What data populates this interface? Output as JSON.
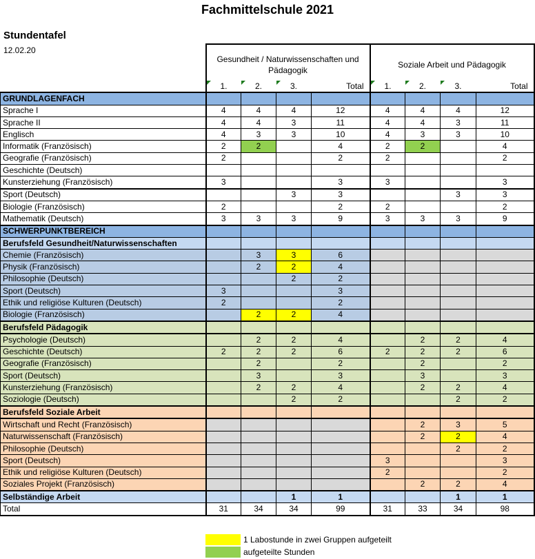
{
  "title": "Fachmittelschule 2021",
  "subtitle": "Stundentafel",
  "date": "12.02.20",
  "colors": {
    "main_header": "#8db4e2",
    "gesundheit_header": "#c5d9f1",
    "gesundheit": "#b8cce4",
    "paedagogik": "#d8e4bc",
    "soziale_arbeit": "#fcd5b4",
    "selbstaendig": "#c5d9f1",
    "unavailable": "#d9d9d9",
    "yellow": "#ffff00",
    "green": "#92d050",
    "white": "#ffffff"
  },
  "groups": [
    {
      "label": "Gesundheit / Naturwissenschaften und Pädagogik",
      "columns": [
        "1.",
        "2.",
        "3.",
        "Total"
      ]
    },
    {
      "label": "Soziale Arbeit und Pädagogik",
      "columns": [
        "1.",
        "2.",
        "3.",
        "Total"
      ]
    }
  ],
  "rows": [
    {
      "label": "GRUNDLAGENFACH",
      "style": "main_header",
      "section": true,
      "cells": [
        "",
        "",
        "",
        "",
        "",
        "",
        "",
        ""
      ]
    },
    {
      "label": "Sprache I",
      "style": "white",
      "cells": [
        "4",
        "4",
        "4",
        "12",
        "4",
        "4",
        "4",
        "12"
      ]
    },
    {
      "label": "Sprache II",
      "style": "white",
      "cells": [
        "4",
        "4",
        "3",
        "11",
        "4",
        "4",
        "3",
        "11"
      ]
    },
    {
      "label": "Englisch",
      "style": "white",
      "cells": [
        "4",
        "3",
        "3",
        "10",
        "4",
        "3",
        "3",
        "10"
      ]
    },
    {
      "label": "Informatik (Französisch)",
      "style": "white",
      "cells": [
        "2",
        "2",
        "",
        "4",
        "2",
        "2",
        "",
        "4"
      ],
      "marks": {
        "1": "green",
        "5": "green"
      }
    },
    {
      "label": "Geografie (Französisch)",
      "style": "white",
      "cells": [
        "2",
        "",
        "",
        "2",
        "2",
        "",
        "",
        "2"
      ]
    },
    {
      "label": "Geschichte (Deutsch)",
      "style": "white",
      "cells": [
        "",
        "",
        "",
        "",
        "",
        "",
        "",
        ""
      ]
    },
    {
      "label": "Kunsterziehung (Französisch)",
      "style": "white",
      "cells": [
        "3",
        "",
        "",
        "3",
        "3",
        "",
        "",
        "3"
      ]
    },
    {
      "label": "Sport (Deutsch)",
      "style": "white",
      "thick": true,
      "cells": [
        "",
        "",
        "3",
        "3",
        "",
        "",
        "3",
        "3"
      ]
    },
    {
      "label": "Biologie (Französisch)",
      "style": "white",
      "cells": [
        "2",
        "",
        "",
        "2",
        "2",
        "",
        "",
        "2"
      ]
    },
    {
      "label": "Mathematik (Deutsch)",
      "style": "white",
      "cells": [
        "3",
        "3",
        "3",
        "9",
        "3",
        "3",
        "3",
        "9"
      ]
    },
    {
      "label": "SCHWERPUNKTBEREICH",
      "style": "main_header",
      "section": true,
      "thick": true,
      "cells": [
        "",
        "",
        "",
        "",
        "",
        "",
        "",
        ""
      ]
    },
    {
      "label": "Berufsfeld Gesundheit/Naturwissenschaften",
      "style": "gesundheit_header",
      "section": true,
      "cells": [
        "",
        "",
        "",
        "",
        "",
        "",
        "",
        ""
      ]
    },
    {
      "label": "Chemie (Französisch)",
      "style": "gesundheit",
      "cells": [
        "",
        "3",
        "3",
        "6",
        "",
        "",
        "",
        ""
      ],
      "marks": {
        "2": "yellow"
      },
      "unavailable": [
        4,
        5,
        6,
        7
      ]
    },
    {
      "label": "Physik (Französisch)",
      "style": "gesundheit",
      "cells": [
        "",
        "2",
        "2",
        "4",
        "",
        "",
        "",
        ""
      ],
      "marks": {
        "2": "yellow"
      },
      "unavailable": [
        4,
        5,
        6,
        7
      ]
    },
    {
      "label": "Philosophie (Deutsch)",
      "style": "gesundheit",
      "cells": [
        "",
        "",
        "2",
        "2",
        "",
        "",
        "",
        ""
      ],
      "unavailable": [
        4,
        5,
        6,
        7
      ]
    },
    {
      "label": "Sport (Deutsch)",
      "style": "gesundheit",
      "cells": [
        "3",
        "",
        "",
        "3",
        "",
        "",
        "",
        ""
      ],
      "unavailable": [
        4,
        5,
        6,
        7
      ]
    },
    {
      "label": "Ethik und religiöse Kulturen (Deutsch)",
      "style": "gesundheit",
      "cells": [
        "2",
        "",
        "",
        "2",
        "",
        "",
        "",
        ""
      ],
      "unavailable": [
        4,
        5,
        6,
        7
      ]
    },
    {
      "label": "Biologie (Französisch)",
      "style": "gesundheit",
      "cells": [
        "",
        "2",
        "2",
        "4",
        "",
        "",
        "",
        ""
      ],
      "marks": {
        "1": "yellow",
        "2": "yellow"
      },
      "unavailable": [
        4,
        5,
        6,
        7
      ]
    },
    {
      "label": "Berufsfeld Pädagogik",
      "style": "paedagogik",
      "section": true,
      "thick": true,
      "cells": [
        "",
        "",
        "",
        "",
        "",
        "",
        "",
        ""
      ]
    },
    {
      "label": "Psychologie (Deutsch)",
      "style": "paedagogik",
      "thick": true,
      "cells": [
        "",
        "2",
        "2",
        "4",
        "",
        "2",
        "2",
        "4"
      ]
    },
    {
      "label": "Geschichte (Deutsch)",
      "style": "paedagogik",
      "cells": [
        "2",
        "2",
        "2",
        "6",
        "2",
        "2",
        "2",
        "6"
      ]
    },
    {
      "label": "Geografie (Französisch)",
      "style": "paedagogik",
      "cells": [
        "",
        "2",
        "",
        "2",
        "",
        "2",
        "",
        "2"
      ]
    },
    {
      "label": "Sport (Deutsch)",
      "style": "paedagogik",
      "cells": [
        "",
        "3",
        "",
        "3",
        "",
        "3",
        "",
        "3"
      ]
    },
    {
      "label": "Kunsterziehung (Französisch)",
      "style": "paedagogik",
      "cells": [
        "",
        "2",
        "2",
        "4",
        "",
        "2",
        "2",
        "4"
      ]
    },
    {
      "label": "Soziologie (Deutsch)",
      "style": "paedagogik",
      "cells": [
        "",
        "",
        "2",
        "2",
        "",
        "",
        "2",
        "2"
      ]
    },
    {
      "label": "Berufsfeld Soziale Arbeit",
      "style": "soziale_arbeit",
      "section": true,
      "thick": true,
      "cells": [
        "",
        "",
        "",
        "",
        "",
        "",
        "",
        ""
      ]
    },
    {
      "label": "Wirtschaft und Recht (Französisch)",
      "style": "soziale_arbeit",
      "thick": true,
      "cells": [
        "",
        "",
        "",
        "",
        "",
        "2",
        "3",
        "5"
      ],
      "unavailable": [
        0,
        1,
        2,
        3
      ]
    },
    {
      "label": "Naturwissenschaft (Französisch)",
      "style": "soziale_arbeit",
      "cells": [
        "",
        "",
        "",
        "",
        "",
        "2",
        "2",
        "4"
      ],
      "marks": {
        "6": "yellow"
      },
      "unavailable": [
        0,
        1,
        2,
        3
      ]
    },
    {
      "label": "Philosophie (Deutsch)",
      "style": "soziale_arbeit",
      "cells": [
        "",
        "",
        "",
        "",
        "",
        "",
        "2",
        "2"
      ],
      "unavailable": [
        0,
        1,
        2,
        3
      ]
    },
    {
      "label": "Sport (Deutsch)",
      "style": "soziale_arbeit",
      "cells": [
        "",
        "",
        "",
        "",
        "3",
        "",
        "",
        "3"
      ],
      "unavailable": [
        0,
        1,
        2,
        3
      ]
    },
    {
      "label": "Ethik und religiöse Kulturen (Deutsch)",
      "style": "soziale_arbeit",
      "cells": [
        "",
        "",
        "",
        "",
        "2",
        "",
        "",
        "2"
      ],
      "unavailable": [
        0,
        1,
        2,
        3
      ]
    },
    {
      "label": "Soziales Projekt (Französisch)",
      "style": "soziale_arbeit",
      "cells": [
        "",
        "",
        "",
        "",
        "",
        "2",
        "2",
        "4"
      ],
      "unavailable": [
        0,
        1,
        2,
        3
      ]
    },
    {
      "label": "Selbständige Arbeit",
      "style": "selbstaendig",
      "section": true,
      "thick": true,
      "cells": [
        "",
        "",
        "1",
        "1",
        "",
        "",
        "1",
        "1"
      ]
    },
    {
      "label": "Total",
      "style": "white",
      "last": true,
      "cells": [
        "31",
        "34",
        "34",
        "99",
        "31",
        "33",
        "34",
        "98"
      ]
    }
  ],
  "legend": [
    {
      "color": "yellow",
      "label": "1 Labostunde in zwei Gruppen aufgeteilt"
    },
    {
      "color": "green",
      "label": "aufgeteilte Stunden"
    }
  ]
}
